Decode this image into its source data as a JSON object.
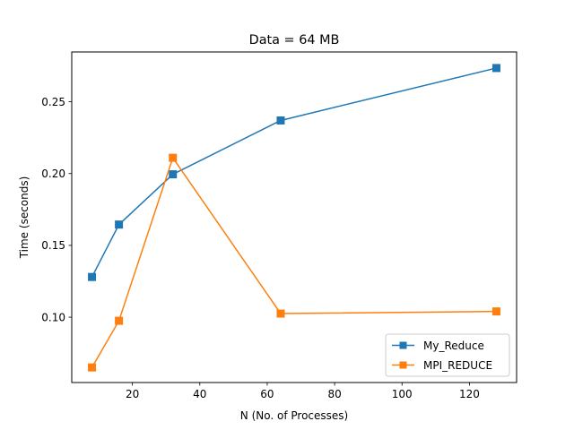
{
  "chart_data": {
    "type": "line",
    "title": "Data = 64 MB",
    "xlabel": "N (No. of Processes)",
    "ylabel": "Time (seconds)",
    "xlim": [
      2.0,
      134.0
    ],
    "ylim": [
      0.0545,
      0.2847
    ],
    "xticks": [
      20,
      40,
      60,
      80,
      100,
      120
    ],
    "yticks": [
      0.1,
      0.15,
      0.2,
      0.25
    ],
    "xtick_labels": [
      "20",
      "40",
      "60",
      "80",
      "100",
      "120"
    ],
    "ytick_labels": [
      "0.10",
      "0.15",
      "0.20",
      "0.25"
    ],
    "grid": false,
    "legend_position": "lower-right",
    "series": [
      {
        "name": "My_Reduce",
        "color": "#1f77b4",
        "marker": "square",
        "x": [
          8,
          16,
          32,
          64,
          128
        ],
        "y": [
          0.128,
          0.1645,
          0.1995,
          0.237,
          0.2735
        ]
      },
      {
        "name": "MPI_REDUCE",
        "color": "#ff7f0e",
        "marker": "square",
        "x": [
          8,
          16,
          32,
          64,
          128
        ],
        "y": [
          0.065,
          0.0975,
          0.211,
          0.1025,
          0.104
        ]
      }
    ]
  }
}
